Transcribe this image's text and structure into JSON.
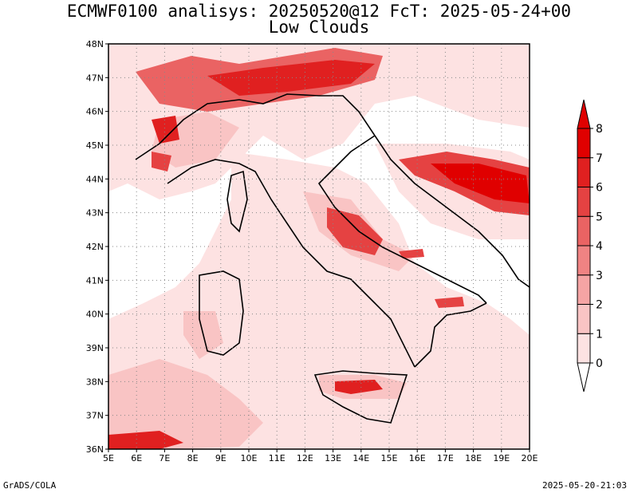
{
  "title_line1": "ECMWF0100 analisys: 20250520@12 FcT: 2025-05-24+00",
  "title_line2": "Low Clouds",
  "footer_left": "GrADS/COLA",
  "footer_right": "2025-05-20-21:03",
  "map": {
    "lon_range": [
      5,
      20
    ],
    "lat_range": [
      36,
      48
    ],
    "lon_labels": [
      "5E",
      "6E",
      "7E",
      "8E",
      "9E",
      "10E",
      "11E",
      "12E",
      "13E",
      "14E",
      "15E",
      "16E",
      "17E",
      "18E",
      "19E",
      "20E"
    ],
    "lat_labels": [
      "36N",
      "37N",
      "38N",
      "39N",
      "40N",
      "41N",
      "42N",
      "43N",
      "44N",
      "45N",
      "46N",
      "47N",
      "48N"
    ],
    "grid": "dotted"
  },
  "colorbar": {
    "levels": [
      "0",
      "1",
      "2",
      "3",
      "4",
      "5",
      "6",
      "7",
      "8"
    ],
    "colors": [
      "#ffffff",
      "#fde2e2",
      "#f9c4c4",
      "#f5a4a4",
      "#f08383",
      "#ea6363",
      "#e54242",
      "#e02020",
      "#e00000"
    ]
  }
}
